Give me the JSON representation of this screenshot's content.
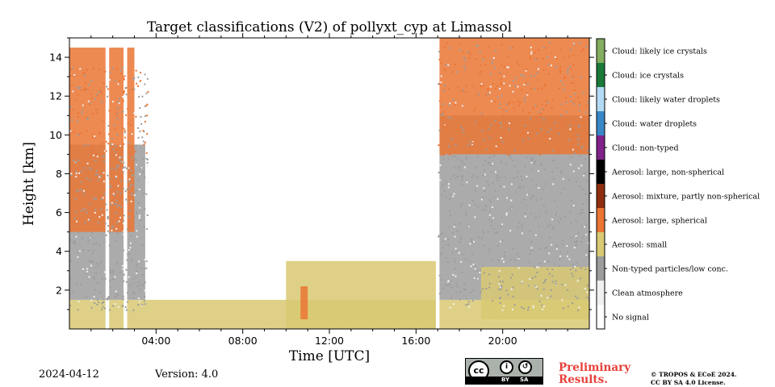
{
  "chart_data": {
    "type": "heatmap",
    "title": "Target classifications (V2) of pollyxt_cyp at Limassol",
    "xlabel": "Time [UTC]",
    "ylabel": "Height [km]",
    "xlim": [
      "00:00",
      "24:00"
    ],
    "ylim": [
      0,
      15
    ],
    "x_ticks": [
      "04:00",
      "08:00",
      "12:00",
      "16:00",
      "20:00"
    ],
    "y_ticks": [
      2,
      4,
      6,
      8,
      10,
      12,
      14
    ],
    "legend_position": "right colorbar",
    "classes": [
      {
        "label": "No signal",
        "color": "#ffffff"
      },
      {
        "label": "Clean atmosphere",
        "color": "#f0f0f0"
      },
      {
        "label": "Non-typed particles/low conc.",
        "color": "#9c9c9c"
      },
      {
        "label": "Aerosol: small",
        "color": "#d8c972"
      },
      {
        "label": "Aerosol: large, spherical",
        "color": "#ea7534"
      },
      {
        "label": "Aerosol: mixture, partly non-spherical",
        "color": "#8f2e0e"
      },
      {
        "label": "Aerosol: large, non-spherical",
        "color": "#000000"
      },
      {
        "label": "Cloud: non-typed",
        "color": "#7f2289"
      },
      {
        "label": "Cloud: water droplets",
        "color": "#3a87c8"
      },
      {
        "label": "Cloud: likely water droplets",
        "color": "#b3dbf5"
      },
      {
        "label": "Cloud: ice crystals",
        "color": "#1a7a39"
      },
      {
        "label": "Cloud: likely ice crystals",
        "color": "#83ad5f"
      }
    ],
    "no_data_gaps_utc": [
      [
        "01:40",
        "01:50"
      ],
      [
        "02:30",
        "02:40"
      ],
      [
        "16:55",
        "17:05"
      ]
    ],
    "regions": [
      {
        "class": "Aerosol: small",
        "time_utc": [
          "00:00",
          "24:00"
        ],
        "height_km": [
          0.0,
          1.5
        ]
      },
      {
        "class": "Non-typed particles/low conc.",
        "time_utc": [
          "00:00",
          "03:30"
        ],
        "height_km": [
          1.5,
          9.5
        ]
      },
      {
        "class": "Non-typed particles/low conc.",
        "time_utc": [
          "17:00",
          "24:00"
        ],
        "height_km": [
          1.5,
          11.0
        ]
      },
      {
        "class": "Aerosol: small",
        "time_utc": [
          "10:00",
          "17:00"
        ],
        "height_km": [
          0.0,
          3.5
        ]
      },
      {
        "class": "Aerosol: small",
        "time_utc": [
          "19:00",
          "24:00"
        ],
        "height_km": [
          0.5,
          3.2
        ]
      },
      {
        "class": "Aerosol: large, spherical",
        "time_utc": [
          "00:00",
          "03:00"
        ],
        "height_km": [
          5.0,
          14.5
        ]
      },
      {
        "class": "Aerosol: large, spherical",
        "time_utc": [
          "17:00",
          "24:00"
        ],
        "height_km": [
          9.0,
          15.0
        ]
      },
      {
        "class": "Aerosol: large, spherical",
        "time_utc": [
          "10:40",
          "11:00"
        ],
        "height_km": [
          0.5,
          2.2
        ]
      }
    ]
  },
  "footer": {
    "date": "2024-04-12",
    "version": "Version: 4.0",
    "license_badge": {
      "cc": "cc",
      "by": "BY",
      "sa": "SA",
      "by_icon": "person-icon",
      "sa_icon": "share-alike-icon"
    },
    "preliminary": [
      "Preliminary",
      "Results."
    ],
    "copyright": [
      "© TROPOS & ECoE 2024.",
      "CC BY SA 4.0 License."
    ]
  }
}
